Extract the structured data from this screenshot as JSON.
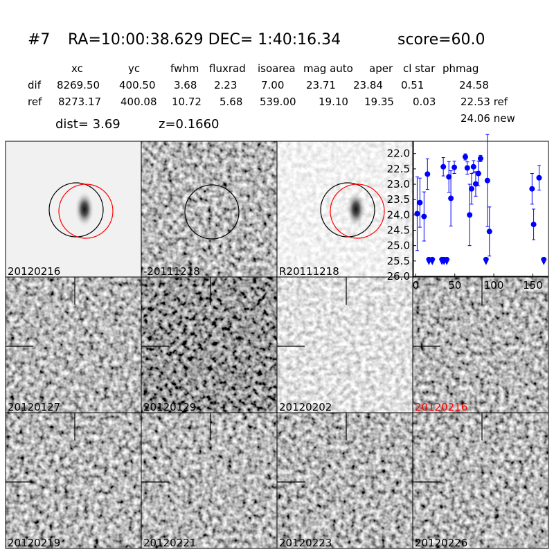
{
  "header": {
    "id": "#7",
    "coords": "RA=10:00:38.629 DEC= 1:40:16.34",
    "score": "score=60.0"
  },
  "table": {
    "columns": [
      "xc",
      "yc",
      "fwhm",
      "fluxrad",
      "isoarea",
      "mag auto",
      "aper",
      "cl star",
      "phmag"
    ],
    "rows": [
      {
        "label": "dif",
        "cells": [
          "8269.50",
          "400.50",
          "3.68",
          "2.23",
          "7.00",
          "23.71",
          "23.84",
          "0.51",
          "24.58"
        ]
      },
      {
        "label": "ref",
        "cells": [
          "8273.17",
          "400.08",
          "10.72",
          "5.68",
          "539.00",
          "19.10",
          "19.35",
          "0.03",
          "22.53 ref"
        ]
      }
    ],
    "extra": "24.06 new"
  },
  "dist": "dist=  3.69",
  "redshift": "z=0.1660",
  "stamps": [
    {
      "label": "20120216",
      "color": "#000000"
    },
    {
      "label": "-20111218",
      "color": "#000000"
    },
    {
      "label": "R20111218",
      "color": "#000000"
    },
    {
      "label": "20120127",
      "color": "#000000"
    },
    {
      "label": "20120129",
      "color": "#000000"
    },
    {
      "label": "20120202",
      "color": "#000000"
    },
    {
      "label": "20120216",
      "color": "#ff0000"
    },
    {
      "label": "20120219",
      "color": "#000000"
    },
    {
      "label": "20120221",
      "color": "#000000"
    },
    {
      "label": "20120223",
      "color": "#000000"
    },
    {
      "label": "20120226",
      "color": "#000000"
    }
  ],
  "light_curve": {
    "type": "scatter",
    "color": "#0000ff",
    "xlim": [
      -3,
      170
    ],
    "ylim": [
      26.0,
      21.6
    ],
    "xticks": [
      0,
      50,
      100,
      150
    ],
    "yticks": [
      {
        "value": 22,
        "label": "22.0"
      },
      22.5,
      {
        "value": 23,
        "label": "23.0"
      },
      23.5,
      {
        "value": 24,
        "label": "24.0"
      },
      24.5,
      {
        "value": 25,
        "label": "25.0"
      },
      25.5,
      {
        "value": 26,
        "label": "26.0"
      }
    ],
    "detections": {
      "x": [
        1.8,
        5.3,
        10.6,
        15,
        35.3,
        42.4,
        45,
        49.4,
        63.5,
        66,
        69,
        71.5,
        74,
        76.8,
        80.3,
        83,
        91.8,
        94.4,
        149,
        151,
        158
      ],
      "y": [
        23.96,
        23.6,
        24.05,
        22.67,
        22.43,
        22.76,
        23.46,
        22.45,
        22.11,
        22.47,
        24.0,
        23.15,
        22.43,
        22.99,
        22.65,
        22.16,
        22.88,
        24.54,
        23.15,
        24.31,
        22.79
      ],
      "yerr": [
        1.2,
        0.8,
        0.8,
        0.5,
        0.3,
        0.5,
        0.9,
        0.2,
        0.1,
        0.2,
        1.0,
        0.5,
        0.2,
        0.4,
        0.4,
        0.1,
        1.5,
        0.8,
        0.5,
        0.5,
        0.4
      ]
    },
    "upper_limits": {
      "x": [
        16.8,
        21.2,
        33.5,
        36.2,
        39.7,
        90,
        164
      ],
      "y": [
        25.5,
        25.5,
        25.5,
        25.5,
        25.5,
        25.5,
        25.5
      ]
    }
  }
}
